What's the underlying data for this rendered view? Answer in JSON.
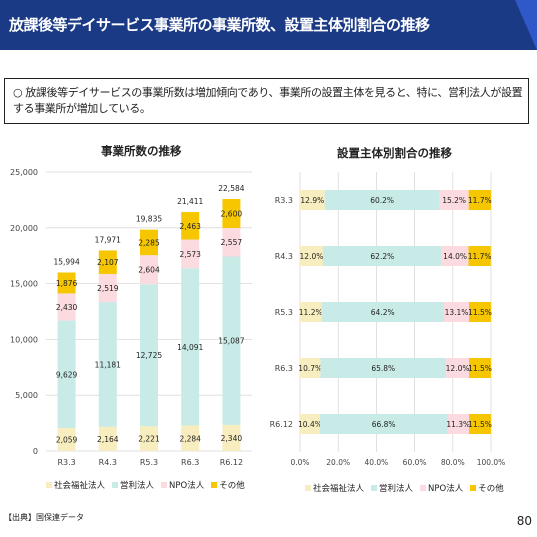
{
  "header": {
    "title": "放課後等デイサービス事業所の事業所数、設置主体別割合の推移"
  },
  "summary": {
    "text": "○ 放課後等デイサービスの事業所数は増加傾向であり、事業所の設置主体を見ると、特に、営利法人が設置する事業所が増加している。"
  },
  "colors": {
    "social_welfare": "#f8edbf",
    "for_profit": "#c8ebe8",
    "npo": "#fbdbe0",
    "other": "#f6c700",
    "header_bg": "#1b3a86",
    "accent": "#2f58c8",
    "gridline": "#d9d9d9"
  },
  "chart_data": [
    {
      "type": "bar",
      "stacked": true,
      "title": "事業所数の推移",
      "categories": [
        "R3.3",
        "R4.3",
        "R5.3",
        "R6.3",
        "R6.12"
      ],
      "ylim": [
        0,
        25000
      ],
      "yticks": [
        "0",
        "5,000",
        "10,000",
        "15,000",
        "20,000",
        "25,000"
      ],
      "grid": true,
      "legend_position": "bottom",
      "series": [
        {
          "name": "社会福祉法人",
          "values": [
            2059,
            2164,
            2221,
            2284,
            2340
          ],
          "labels": [
            "2,059",
            "2,164",
            "2,221",
            "2,284",
            "2,340"
          ]
        },
        {
          "name": "営利法人",
          "values": [
            9629,
            11181,
            12725,
            14091,
            15087
          ],
          "labels": [
            "9,629",
            "11,181",
            "12,725",
            "14,091",
            "15,087"
          ]
        },
        {
          "name": "NPO法人",
          "values": [
            2430,
            2519,
            2604,
            2573,
            2557
          ],
          "labels": [
            "2,430",
            "2,519",
            "2,604",
            "2,573",
            "2,557"
          ]
        },
        {
          "name": "その他",
          "values": [
            1876,
            2107,
            2285,
            2463,
            2600
          ],
          "labels": [
            "1,876",
            "2,107",
            "2,285",
            "2,463",
            "2,600"
          ]
        }
      ],
      "totals": [
        15994,
        17971,
        19835,
        21411,
        22584
      ],
      "total_labels": [
        "15,994",
        "17,971",
        "19,835",
        "21,411",
        "22,584"
      ]
    },
    {
      "type": "bar",
      "orientation": "horizontal",
      "stacked": true,
      "percent": true,
      "title": "設置主体別割合の推移",
      "categories": [
        "R3.3",
        "R4.3",
        "R5.3",
        "R6.3",
        "R6.12"
      ],
      "xlim": [
        0,
        100
      ],
      "xticks": [
        "0.0%",
        "20.0%",
        "40.0%",
        "60.0%",
        "80.0%",
        "100.0%"
      ],
      "grid": true,
      "legend_position": "bottom",
      "series": [
        {
          "name": "社会福祉法人",
          "values": [
            12.9,
            12.0,
            11.2,
            10.7,
            10.4
          ],
          "labels": [
            "12.9%",
            "12.0%",
            "11.2%",
            "10.7%",
            "10.4%"
          ]
        },
        {
          "name": "営利法人",
          "values": [
            60.2,
            62.2,
            64.2,
            65.8,
            66.8
          ],
          "labels": [
            "60.2%",
            "62.2%",
            "64.2%",
            "65.8%",
            "66.8%"
          ]
        },
        {
          "name": "NPO法人",
          "values": [
            15.2,
            14.0,
            13.1,
            12.0,
            11.3
          ],
          "labels": [
            "15.2%",
            "14.0%",
            "13.1%",
            "12.0%",
            "11.3%"
          ]
        },
        {
          "name": "その他",
          "values": [
            11.7,
            11.7,
            11.5,
            11.5,
            11.5
          ],
          "labels": [
            "11.7%",
            "11.7%",
            "11.5%",
            "11.5%",
            "11.5%"
          ]
        }
      ]
    }
  ],
  "source": "【出典】国保連データ",
  "page_number": "80"
}
